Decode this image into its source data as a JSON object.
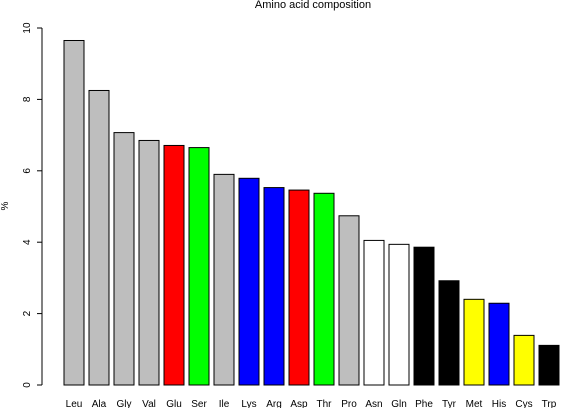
{
  "chart_data": {
    "type": "bar",
    "title": "Amino acid composition",
    "xlabel": "",
    "ylabel": "%",
    "ylim": [
      0,
      10
    ],
    "yticks": [
      0,
      2,
      4,
      6,
      8,
      10
    ],
    "grid": false,
    "legend": "none",
    "categories": [
      "Leu",
      "Ala",
      "Gly",
      "Val",
      "Glu",
      "Ser",
      "Ile",
      "Lys",
      "Arg",
      "Asp",
      "Thr",
      "Pro",
      "Asn",
      "Gln",
      "Phe",
      "Tyr",
      "Met",
      "His",
      "Cys",
      "Trp"
    ],
    "values": [
      9.65,
      8.25,
      7.07,
      6.85,
      6.71,
      6.65,
      5.9,
      5.79,
      5.53,
      5.46,
      5.37,
      4.74,
      4.05,
      3.94,
      3.86,
      2.92,
      2.4,
      2.29,
      1.39,
      1.11
    ],
    "colors": [
      "#bebebe",
      "#bebebe",
      "#bebebe",
      "#bebebe",
      "#ff0000",
      "#00ff00",
      "#bebebe",
      "#0000ff",
      "#0000ff",
      "#ff0000",
      "#00ff00",
      "#bebebe",
      "#ffffff",
      "#ffffff",
      "#000000",
      "#000000",
      "#ffff00",
      "#0000ff",
      "#ffff00",
      "#000000"
    ]
  }
}
